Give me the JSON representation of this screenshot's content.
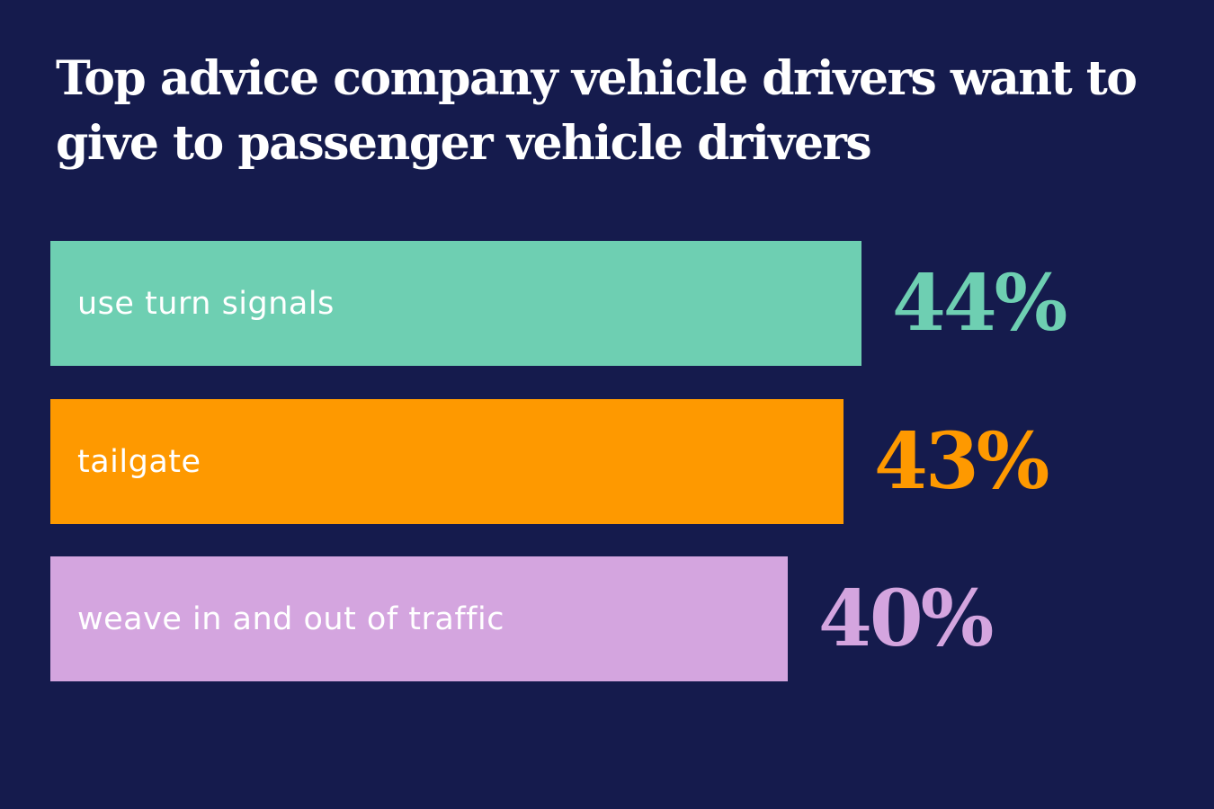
{
  "chart_data": {
    "type": "bar",
    "orientation": "horizontal",
    "title": "Top advice company vehicle drivers want to give to passenger vehicle drivers",
    "categories": [
      "use turn signals",
      "tailgate",
      "weave in and out of traffic"
    ],
    "values": [
      44,
      43,
      40
    ],
    "value_labels": [
      "44%",
      "43%",
      "40%"
    ],
    "unit": "%",
    "colors": [
      "#6ecfb2",
      "#fe9900",
      "#d4a5df"
    ],
    "label_color": "#ffffff",
    "background": "#151b4d",
    "grid": false,
    "legend": "none"
  }
}
